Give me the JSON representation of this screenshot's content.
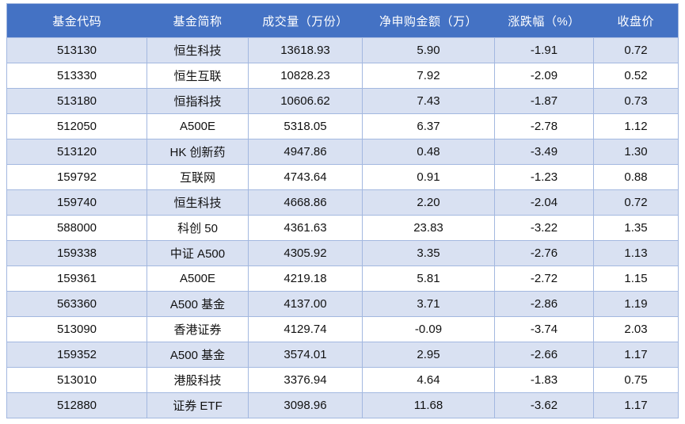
{
  "chart_data": {
    "type": "table",
    "columns": [
      "基金代码",
      "基金简称",
      "成交量（万份）",
      "净申购金额（万）",
      "涨跌幅（%）",
      "收盘价"
    ],
    "rows": [
      [
        "513130",
        "恒生科技",
        "13618.93",
        "5.90",
        "-1.91",
        "0.72"
      ],
      [
        "513330",
        "恒生互联",
        "10828.23",
        "7.92",
        "-2.09",
        "0.52"
      ],
      [
        "513180",
        "恒指科技",
        "10606.62",
        "7.43",
        "-1.87",
        "0.73"
      ],
      [
        "512050",
        "A500E",
        "5318.05",
        "6.37",
        "-2.78",
        "1.12"
      ],
      [
        "513120",
        "HK 创新药",
        "4947.86",
        "0.48",
        "-3.49",
        "1.30"
      ],
      [
        "159792",
        "互联网",
        "4743.64",
        "0.91",
        "-1.23",
        "0.88"
      ],
      [
        "159740",
        "恒生科技",
        "4668.86",
        "2.20",
        "-2.04",
        "0.72"
      ],
      [
        "588000",
        "科创 50",
        "4361.63",
        "23.83",
        "-3.22",
        "1.35"
      ],
      [
        "159338",
        "中证 A500",
        "4305.92",
        "3.35",
        "-2.76",
        "1.13"
      ],
      [
        "159361",
        "A500E",
        "4219.18",
        "5.81",
        "-2.72",
        "1.15"
      ],
      [
        "563360",
        "A500 基金",
        "4137.00",
        "3.71",
        "-2.86",
        "1.19"
      ],
      [
        "513090",
        "香港证券",
        "4129.74",
        "-0.09",
        "-3.74",
        "2.03"
      ],
      [
        "159352",
        "A500 基金",
        "3574.01",
        "2.95",
        "-2.66",
        "1.17"
      ],
      [
        "513010",
        "港股科技",
        "3376.94",
        "4.64",
        "-1.83",
        "0.75"
      ],
      [
        "512880",
        "证券 ETF",
        "3098.96",
        "11.68",
        "-3.62",
        "1.17"
      ]
    ],
    "title": "",
    "banding": "odd-rows-shaded"
  },
  "colors": {
    "header_bg": "#4472C4",
    "header_text": "#FFFFFF",
    "band_row_bg": "#D9E1F2",
    "row_bg": "#FFFFFF",
    "grid_border": "#A3B8E0",
    "body_text": "#111111"
  }
}
